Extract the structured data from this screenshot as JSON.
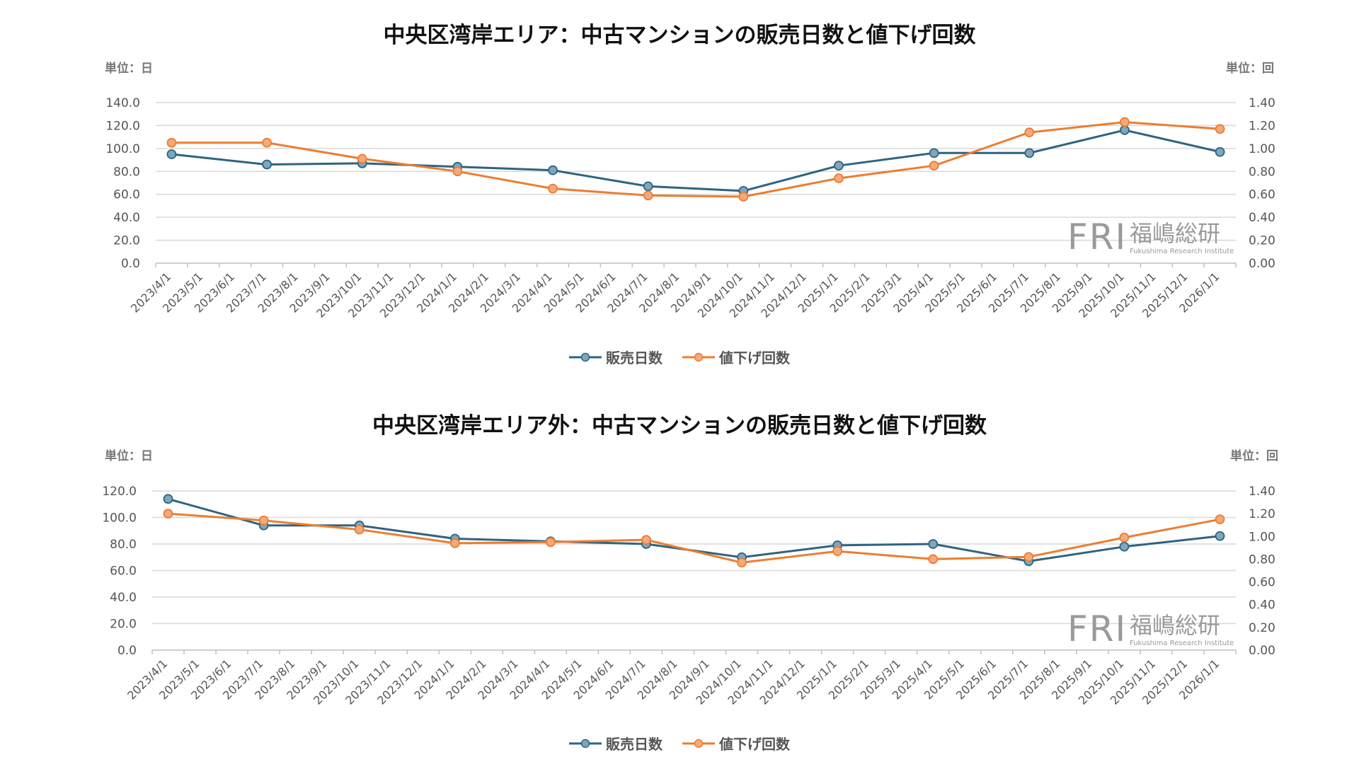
{
  "watermark": {
    "brand": "FRI",
    "name_jp": "福嶋総研",
    "name_en": "Fukushima Research Institute"
  },
  "chart_data": [
    {
      "type": "line",
      "title": "中央区湾岸エリア：中古マンションの販売日数と値下げ回数",
      "unit_left": "単位：日",
      "unit_right": "単位：回",
      "categories": [
        "2023/4/1",
        "2023/5/1",
        "2023/6/1",
        "2023/7/1",
        "2023/8/1",
        "2023/9/1",
        "2023/10/1",
        "2023/11/1",
        "2023/12/1",
        "2024/1/1",
        "2024/2/1",
        "2024/3/1",
        "2024/4/1",
        "2024/5/1",
        "2024/6/1",
        "2024/7/1",
        "2024/8/1",
        "2024/9/1",
        "2024/10/1",
        "2024/11/1",
        "2024/12/1",
        "2025/1/1",
        "2025/2/1",
        "2025/3/1",
        "2025/4/1",
        "2025/5/1",
        "2025/6/1",
        "2025/7/1",
        "2025/8/1",
        "2025/9/1",
        "2025/10/1",
        "2025/11/1",
        "2025/12/1",
        "2026/1/1"
      ],
      "y_left": {
        "min": 0,
        "max": 140,
        "step": 20,
        "ticks": [
          "0.0",
          "20.0",
          "40.0",
          "60.0",
          "80.0",
          "100.0",
          "120.0",
          "140.0"
        ]
      },
      "y_right": {
        "min": 0,
        "max": 1.4,
        "step": 0.2,
        "ticks": [
          "0.00",
          "0.20",
          "0.40",
          "0.60",
          "0.80",
          "1.00",
          "1.20",
          "1.40"
        ]
      },
      "grid": true,
      "legend_position": "bottom",
      "series": [
        {
          "name": "販売日数",
          "axis": "left",
          "color": "#2e6480",
          "points": [
            [
              0,
              95
            ],
            [
              3,
              86
            ],
            [
              6,
              87
            ],
            [
              9,
              84
            ],
            [
              12,
              81
            ],
            [
              15,
              67
            ],
            [
              18,
              63
            ],
            [
              21,
              85
            ],
            [
              24,
              96
            ],
            [
              27,
              96
            ],
            [
              30,
              116
            ],
            [
              33,
              97
            ]
          ]
        },
        {
          "name": "値下げ回数",
          "axis": "right",
          "color": "#ed7d31",
          "points": [
            [
              0,
              1.05
            ],
            [
              3,
              1.05
            ],
            [
              6,
              0.91
            ],
            [
              9,
              0.8
            ],
            [
              12,
              0.65
            ],
            [
              15,
              0.59
            ],
            [
              18,
              0.58
            ],
            [
              21,
              0.74
            ],
            [
              24,
              0.85
            ],
            [
              27,
              1.14
            ],
            [
              30,
              1.23
            ],
            [
              33,
              1.17
            ]
          ]
        }
      ]
    },
    {
      "type": "line",
      "title": "中央区湾岸エリア外：中古マンションの販売日数と値下げ回数",
      "unit_left": "単位：日",
      "unit_right": "単位：回",
      "categories": [
        "2023/4/1",
        "2023/5/1",
        "2023/6/1",
        "2023/7/1",
        "2023/8/1",
        "2023/9/1",
        "2023/10/1",
        "2023/11/1",
        "2023/12/1",
        "2024/1/1",
        "2024/2/1",
        "2024/3/1",
        "2024/4/1",
        "2024/5/1",
        "2024/6/1",
        "2024/7/1",
        "2024/8/1",
        "2024/9/1",
        "2024/10/1",
        "2024/11/1",
        "2024/12/1",
        "2025/1/1",
        "2025/2/1",
        "2025/3/1",
        "2025/4/1",
        "2025/5/1",
        "2025/6/1",
        "2025/7/1",
        "2025/8/1",
        "2025/9/1",
        "2025/10/1",
        "2025/11/1",
        "2025/12/1",
        "2026/1/1"
      ],
      "y_left": {
        "min": 0,
        "max": 120,
        "step": 20,
        "ticks": [
          "0.0",
          "20.0",
          "40.0",
          "60.0",
          "80.0",
          "100.0",
          "120.0"
        ]
      },
      "y_right": {
        "min": 0,
        "max": 1.4,
        "step": 0.2,
        "ticks": [
          "0.00",
          "0.20",
          "0.40",
          "0.60",
          "0.80",
          "1.00",
          "1.20",
          "1.40"
        ]
      },
      "grid": true,
      "legend_position": "bottom",
      "series": [
        {
          "name": "販売日数",
          "axis": "left",
          "color": "#2e6480",
          "points": [
            [
              0,
              114
            ],
            [
              3,
              94
            ],
            [
              6,
              94
            ],
            [
              9,
              84
            ],
            [
              12,
              82
            ],
            [
              15,
              80
            ],
            [
              18,
              70
            ],
            [
              21,
              79
            ],
            [
              24,
              80
            ],
            [
              27,
              67
            ],
            [
              30,
              78
            ],
            [
              33,
              86
            ]
          ]
        },
        {
          "name": "値下げ回数",
          "axis": "right",
          "color": "#ed7d31",
          "points": [
            [
              0,
              1.2
            ],
            [
              3,
              1.14
            ],
            [
              6,
              1.06
            ],
            [
              9,
              0.94
            ],
            [
              12,
              0.95
            ],
            [
              15,
              0.97
            ],
            [
              18,
              0.77
            ],
            [
              21,
              0.87
            ],
            [
              24,
              0.8
            ],
            [
              27,
              0.82
            ],
            [
              30,
              0.99
            ],
            [
              33,
              1.15
            ]
          ]
        }
      ]
    }
  ]
}
